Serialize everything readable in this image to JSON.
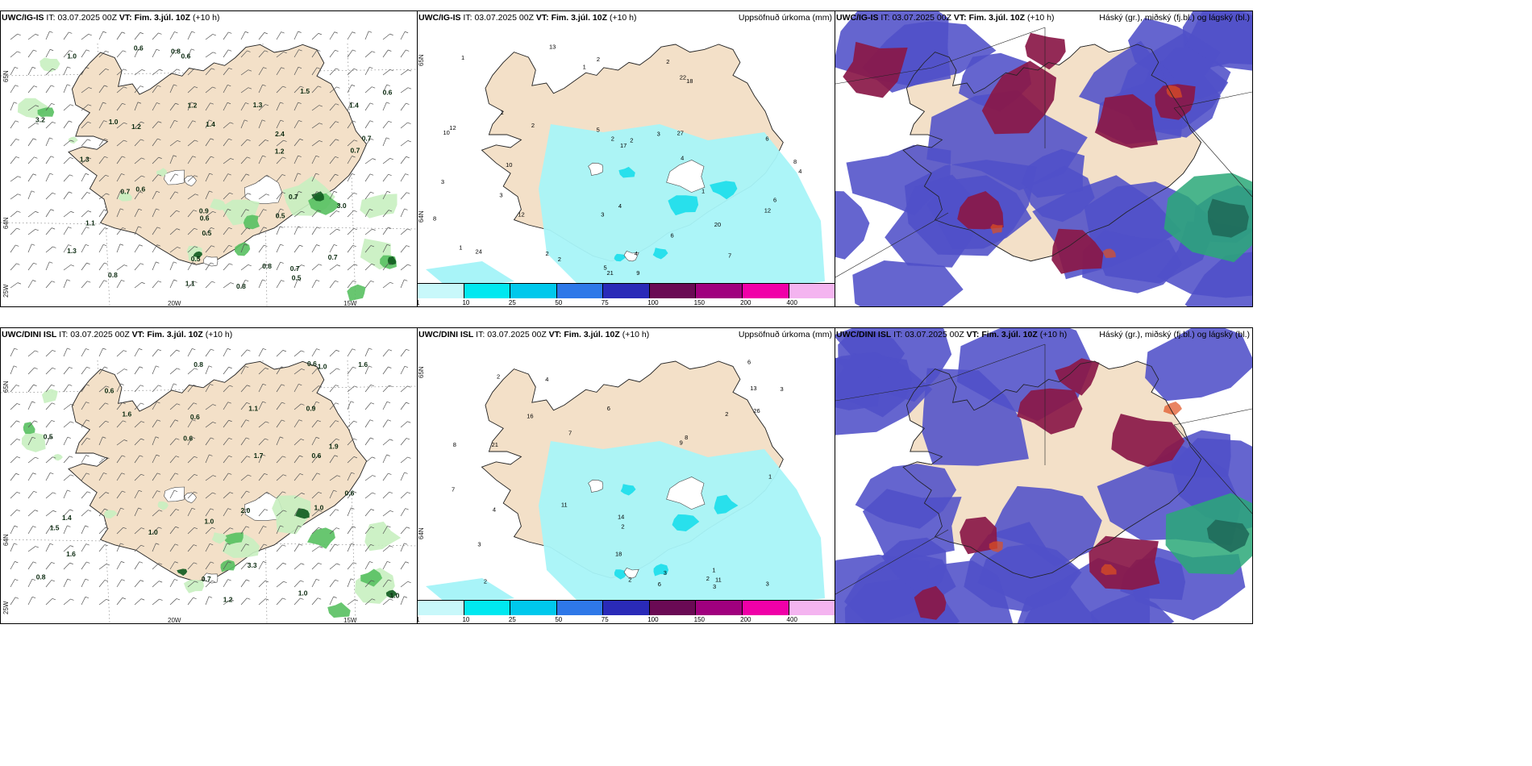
{
  "panels": {
    "ig_wind": {
      "model": "UWC/IG-IS",
      "it_label": "IT:",
      "it_value": "03.07.2025 00Z",
      "vt_label": "VT:",
      "vt_value": "Fim. 3.júl. 10Z",
      "lead": "(+10 h)",
      "lat_labels": [
        "65N",
        "64N",
        "25W"
      ],
      "lon_labels": [
        "20W",
        "15W"
      ],
      "values": [
        "1.3",
        "0.6",
        "1.4",
        "1.5",
        "0.5",
        "0.6",
        "1.2",
        "1.4",
        "1.1",
        "0.8",
        "0.7",
        "0.8",
        "0.9",
        "0.8",
        "1.2",
        "0.6",
        "0.5",
        "1.3",
        "0.7",
        "0.7",
        "0.7",
        "1.0",
        "0.5",
        "0.6",
        "0.6",
        "0.8",
        "0.7",
        "1.1",
        "1.3",
        "0.5",
        "2.4",
        "0.7",
        "3.0",
        "1.2",
        "3.2",
        "1.0"
      ]
    },
    "ig_precip": {
      "model": "UWC/IG-IS",
      "it_label": "IT:",
      "it_value": "03.07.2025 00Z",
      "vt_label": "VT:",
      "vt_value": "Fim. 3.júl. 10Z",
      "lead": "(+10 h)",
      "right_title": "Uppsöfnuð úrkoma (mm)",
      "lat_labels": [
        "65N",
        "64N"
      ],
      "values": [
        "2",
        "1",
        "2",
        "8",
        "3",
        "2",
        "1",
        "2",
        "1",
        "1",
        "1",
        "3",
        "5",
        "4",
        "2",
        "24",
        "4",
        "6",
        "5",
        "6",
        "4",
        "7",
        "9",
        "6",
        "2",
        "4",
        "27",
        "20",
        "17",
        "12",
        "12",
        "21",
        "22",
        "18",
        "10",
        "13",
        "8",
        "10",
        "3",
        "12",
        "2",
        "3"
      ]
    },
    "ig_cloud": {
      "model": "UWC/IG-IS",
      "it_label": "IT:",
      "it_value": "03.07.2025 00Z",
      "vt_label": "VT:",
      "vt_value": "Fim. 3.júl. 10Z",
      "lead": "(+10 h)",
      "right_title": "Háský (gr.), miðský (fj.bl.) og lágský (bl.)"
    },
    "dini_wind": {
      "model": "UWC/DINI ISL",
      "it_label": "IT:",
      "it_value": "03.07.2025 00Z",
      "vt_label": "VT:",
      "vt_value": "Fim. 3.júl. 10Z",
      "lead": "(+10 h)",
      "lat_labels": [
        "65N",
        "64N",
        "25W"
      ],
      "lon_labels": [
        "20W",
        "15W"
      ],
      "values": [
        "0.6",
        "0.6",
        "1.6",
        "0.6",
        "1.4",
        "0.5",
        "0.8",
        "0.6",
        "1.2",
        "1.0",
        "0.6",
        "1.6",
        "1.0",
        "0.9",
        "0.7",
        "0.6",
        "1.0",
        "3.3",
        "1.5",
        "1.0",
        "1.1",
        "0.8",
        "1.0",
        "1.9",
        "1.0",
        "1.7",
        "2.0",
        "1.6"
      ]
    },
    "dini_precip": {
      "model": "UWC/DINI ISL",
      "it_label": "IT:",
      "it_value": "03.07.2025 00Z",
      "vt_label": "VT:",
      "vt_value": "Fim. 3.júl. 10Z",
      "lead": "(+10 h)",
      "right_title": "Uppsöfnuð úrkoma (mm)",
      "lat_labels": [
        "65N",
        "64N"
      ],
      "values": [
        "2",
        "1",
        "2",
        "3",
        "1",
        "3",
        "2",
        "7",
        "6",
        "11",
        "14",
        "26",
        "2",
        "3",
        "4",
        "9",
        "8",
        "2",
        "6",
        "21",
        "13",
        "18",
        "16",
        "6",
        "7",
        "8",
        "3",
        "2",
        "3",
        "11",
        "4"
      ]
    },
    "dini_cloud": {
      "model": "UWC/DINI ISL",
      "it_label": "IT:",
      "it_value": "03.07.2025 00Z",
      "vt_label": "VT:",
      "vt_value": "Fim. 3.júl. 10Z",
      "lead": "(+10 h)",
      "right_title": "Háský (gr.), miðský (fj.bl.) og lágský (bl.)"
    }
  },
  "colorbar": {
    "ticks": [
      "1",
      "10",
      "25",
      "50",
      "75",
      "100",
      "150",
      "200",
      "400"
    ],
    "colors": [
      "#c8f8fa",
      "#00e8f0",
      "#00c8ec",
      "#2e78e8",
      "#2a2ab8",
      "#6a0a54",
      "#a0007e",
      "#f000a8",
      "#f4b4f0"
    ]
  },
  "colors": {
    "land": "#f3e0c8",
    "wind_green_light": "#c8f0c0",
    "wind_green_mid": "#58c060",
    "wind_green_dark": "#0e5a1e",
    "precip_light": "#a8f4f8",
    "precip_mid": "#28e0ec",
    "cloud_low": "#5050c8",
    "cloud_mid": "#8a1848",
    "cloud_high": "#2aa878",
    "cloud_red": "#e05020"
  }
}
